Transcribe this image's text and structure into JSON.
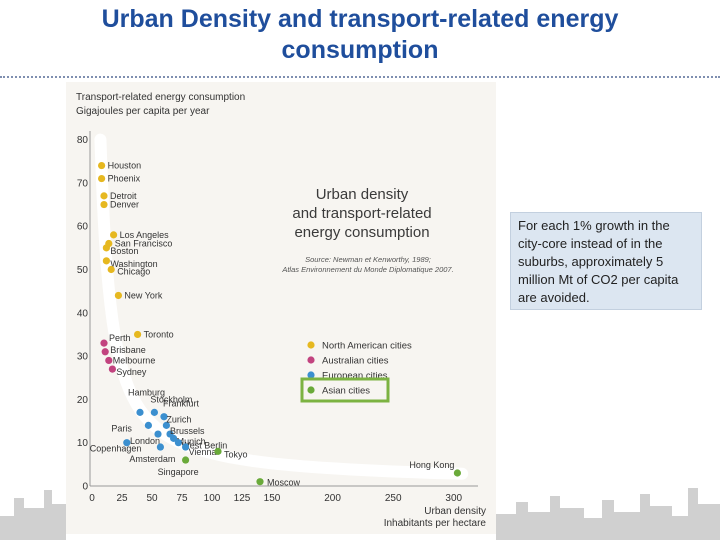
{
  "slide": {
    "title": "Urban Density and transport-related energy consumption",
    "callout": "For each 1% growth in the city-core instead of in the suburbs, approximately 5 million Mt of CO2 per capita are avoided."
  },
  "chart_data": {
    "type": "scatter",
    "title": "Urban density and transport-related energy consumption",
    "source_note": [
      "Source: Newman et Kenworthy, 1989;",
      "Atlas Environnement du Monde Diplomatique 2007."
    ],
    "ylabel": [
      "Transport-related energy consumption",
      "Gigajoules per capita per year"
    ],
    "xlabel": [
      "Urban density",
      "Inhabitants per hectare"
    ],
    "xlim": [
      0,
      320
    ],
    "ylim": [
      0,
      85
    ],
    "xticks": [
      0,
      25,
      50,
      75,
      100,
      125,
      150,
      200,
      250,
      300
    ],
    "yticks": [
      0,
      10,
      20,
      30,
      40,
      50,
      60,
      70,
      80
    ],
    "legend_position": "right",
    "series": [
      {
        "name": "North American cities",
        "color": "#e6b820",
        "points": [
          {
            "label": "Houston",
            "x": 8,
            "y": 74
          },
          {
            "label": "Phoenix",
            "x": 8,
            "y": 71
          },
          {
            "label": "Detroit",
            "x": 10,
            "y": 67
          },
          {
            "label": "Denver",
            "x": 10,
            "y": 65
          },
          {
            "label": "Los Angeles",
            "x": 18,
            "y": 58
          },
          {
            "label": "San Francisco",
            "x": 14,
            "y": 56
          },
          {
            "label": "Boston",
            "x": 12,
            "y": 55
          },
          {
            "label": "Washington",
            "x": 12,
            "y": 52
          },
          {
            "label": "Chicago",
            "x": 16,
            "y": 50
          },
          {
            "label": "New York",
            "x": 22,
            "y": 44
          },
          {
            "label": "Toronto",
            "x": 38,
            "y": 35
          }
        ]
      },
      {
        "name": "Australian cities",
        "color": "#c2437f",
        "points": [
          {
            "label": "Perth",
            "x": 10,
            "y": 33
          },
          {
            "label": "Brisbane",
            "x": 11,
            "y": 31
          },
          {
            "label": "Melbourne",
            "x": 14,
            "y": 29
          },
          {
            "label": "Sydney",
            "x": 17,
            "y": 27
          }
        ]
      },
      {
        "name": "European cities",
        "color": "#3b8fcf",
        "points": [
          {
            "label": "Hamburg",
            "x": 40,
            "y": 17
          },
          {
            "label": "Stockholm",
            "x": 52,
            "y": 17
          },
          {
            "label": "Frankfurt",
            "x": 60,
            "y": 16
          },
          {
            "label": "Zurich",
            "x": 62,
            "y": 14
          },
          {
            "label": "Brussels",
            "x": 65,
            "y": 12
          },
          {
            "label": "Munich",
            "x": 68,
            "y": 11
          },
          {
            "label": "West Berlin",
            "x": 72,
            "y": 10
          },
          {
            "label": "Vienna",
            "x": 78,
            "y": 9
          },
          {
            "label": "Paris",
            "x": 47,
            "y": 14
          },
          {
            "label": "London",
            "x": 55,
            "y": 12
          },
          {
            "label": "Copenhagen",
            "x": 29,
            "y": 10
          },
          {
            "label": "Amsterdam",
            "x": 57,
            "y": 9
          }
        ]
      },
      {
        "name": "Asian cities",
        "color": "#6aaa3a",
        "points": [
          {
            "label": "Tokyo",
            "x": 105,
            "y": 8
          },
          {
            "label": "Singapore",
            "x": 78,
            "y": 6
          },
          {
            "label": "Moscow",
            "x": 140,
            "y": 1
          },
          {
            "label": "Hong Kong",
            "x": 303,
            "y": 3
          }
        ]
      }
    ],
    "highlight": {
      "series": "Asian cities",
      "color": "#7cb342"
    }
  }
}
